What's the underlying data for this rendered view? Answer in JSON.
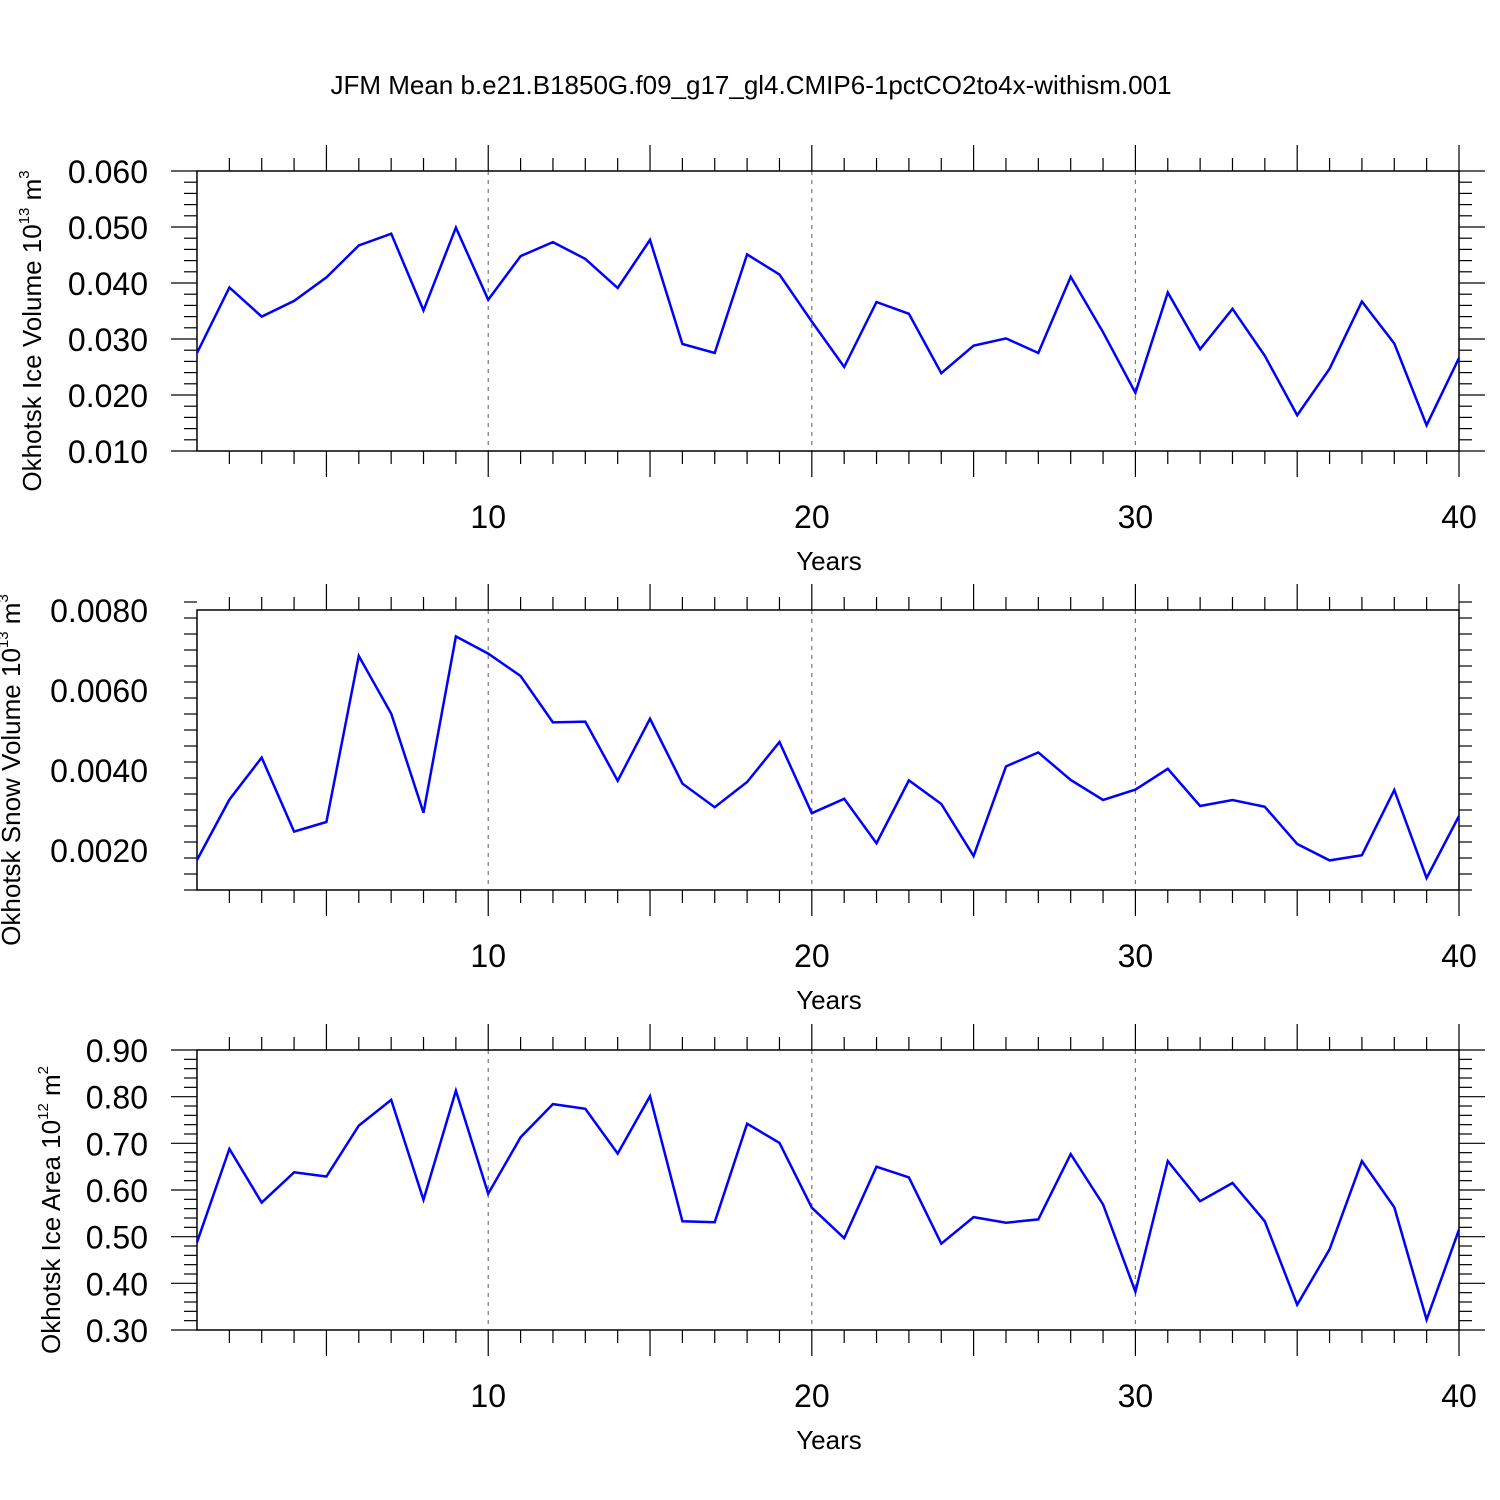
{
  "title": "JFM Mean b.e21.B1850G.f09_g17_gl4.CMIP6-1pctCO2to4x-withism.001",
  "colors": {
    "series": "#0000ff",
    "grid": "#777777",
    "axes": "#000000"
  },
  "chart_data": [
    {
      "type": "line",
      "xlabel": "Years",
      "ylabel_main": "Okhotsk Ice Volume 10",
      "ylabel_exp": "13",
      "ylabel_unit": " m",
      "ylabel_unit_exp": "3",
      "xlim": [
        1,
        40
      ],
      "ylim": [
        0.01,
        0.06
      ],
      "xticks": [
        10,
        20,
        30,
        40
      ],
      "yticks": [
        "0.010",
        "0.020",
        "0.030",
        "0.040",
        "0.050",
        "0.060"
      ],
      "grid_x": true,
      "x": [
        1,
        2,
        3,
        4,
        5,
        6,
        7,
        8,
        9,
        10,
        11,
        12,
        13,
        14,
        15,
        16,
        17,
        18,
        19,
        20,
        21,
        22,
        23,
        24,
        25,
        26,
        27,
        28,
        29,
        30,
        31,
        32,
        33,
        34,
        35,
        36,
        37,
        38,
        39,
        40
      ],
      "values": [
        0.0275,
        0.0392,
        0.034,
        0.0368,
        0.041,
        0.0467,
        0.0488,
        0.0351,
        0.0499,
        0.037,
        0.0448,
        0.0473,
        0.0443,
        0.0391,
        0.0477,
        0.0291,
        0.0275,
        0.0451,
        0.0415,
        0.0331,
        0.025,
        0.0366,
        0.0345,
        0.0239,
        0.0288,
        0.0301,
        0.0275,
        0.0411,
        0.0312,
        0.0204,
        0.0383,
        0.0282,
        0.0354,
        0.027,
        0.0164,
        0.0247,
        0.0367,
        0.0292,
        0.0146,
        0.0266
      ]
    },
    {
      "type": "line",
      "xlabel": "Years",
      "ylabel_main": "Okhotsk Snow Volume 10",
      "ylabel_exp": "13",
      "ylabel_unit": " m",
      "ylabel_unit_exp": "3",
      "xlim": [
        1,
        40
      ],
      "ylim": [
        0.001,
        0.008
      ],
      "xticks": [
        10,
        20,
        30,
        40
      ],
      "yticks": [
        "0.0020",
        "0.0040",
        "0.0060",
        "0.0080"
      ],
      "grid_x": true,
      "x": [
        1,
        2,
        3,
        4,
        5,
        6,
        7,
        8,
        9,
        10,
        11,
        12,
        13,
        14,
        15,
        16,
        17,
        18,
        19,
        20,
        21,
        22,
        23,
        24,
        25,
        26,
        27,
        28,
        29,
        30,
        31,
        32,
        33,
        34,
        35,
        36,
        37,
        38,
        39,
        40
      ],
      "values": [
        0.00175,
        0.00326,
        0.00431,
        0.00246,
        0.0027,
        0.00685,
        0.00541,
        0.00293,
        0.00734,
        0.00691,
        0.00635,
        0.00519,
        0.00521,
        0.00373,
        0.00528,
        0.00366,
        0.00307,
        0.0037,
        0.0047,
        0.00292,
        0.00328,
        0.00217,
        0.00374,
        0.00315,
        0.00185,
        0.00409,
        0.00444,
        0.00375,
        0.00325,
        0.00351,
        0.00403,
        0.0031,
        0.00325,
        0.00308,
        0.00215,
        0.00174,
        0.00187,
        0.0035,
        0.0013,
        0.00285
      ]
    },
    {
      "type": "line",
      "xlabel": "Years",
      "ylabel_main": "Okhotsk Ice Area 10",
      "ylabel_exp": "12",
      "ylabel_unit": " m",
      "ylabel_unit_exp": "2",
      "xlim": [
        1,
        40
      ],
      "ylim": [
        0.3,
        0.9
      ],
      "xticks": [
        10,
        20,
        30,
        40
      ],
      "yticks": [
        "0.30",
        "0.40",
        "0.50",
        "0.60",
        "0.70",
        "0.80",
        "0.90"
      ],
      "grid_x": true,
      "x": [
        1,
        2,
        3,
        4,
        5,
        6,
        7,
        8,
        9,
        10,
        11,
        12,
        13,
        14,
        15,
        16,
        17,
        18,
        19,
        20,
        21,
        22,
        23,
        24,
        25,
        26,
        27,
        28,
        29,
        30,
        31,
        32,
        33,
        34,
        35,
        36,
        37,
        38,
        39,
        40
      ],
      "values": [
        0.488,
        0.688,
        0.573,
        0.638,
        0.629,
        0.738,
        0.793,
        0.579,
        0.813,
        0.592,
        0.713,
        0.784,
        0.774,
        0.678,
        0.801,
        0.533,
        0.531,
        0.742,
        0.701,
        0.562,
        0.497,
        0.65,
        0.627,
        0.485,
        0.542,
        0.53,
        0.537,
        0.677,
        0.569,
        0.382,
        0.662,
        0.576,
        0.615,
        0.533,
        0.354,
        0.473,
        0.662,
        0.563,
        0.322,
        0.515
      ]
    }
  ]
}
